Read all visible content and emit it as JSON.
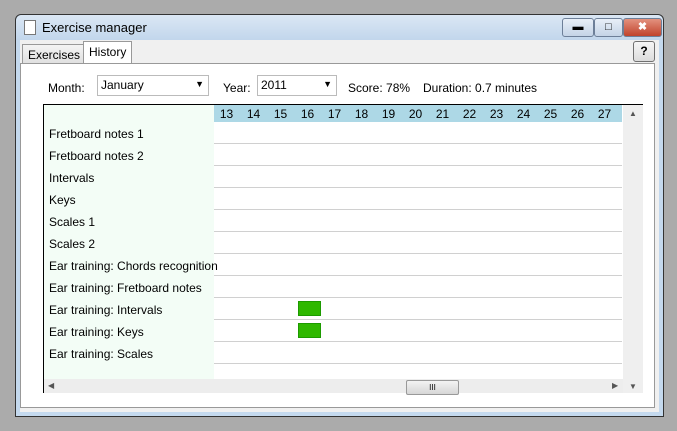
{
  "window": {
    "title": "Exercise manager"
  },
  "tabs": [
    {
      "label": "Exercises",
      "active": false
    },
    {
      "label": "History",
      "active": true
    }
  ],
  "help_label": "?",
  "filters": {
    "month_label": "Month:",
    "month_value": "January",
    "year_label": "Year:",
    "year_value": "2011",
    "score": "Score: 78%",
    "duration": "Duration: 0.7 minutes"
  },
  "days": [
    "13",
    "14",
    "15",
    "16",
    "17",
    "18",
    "19",
    "20",
    "21",
    "22",
    "23",
    "24",
    "25",
    "26",
    "27"
  ],
  "exercises": [
    "Fretboard notes 1",
    "Fretboard notes 2",
    "Intervals",
    "Keys",
    "Scales 1",
    "Scales 2",
    "Ear training: Chords recognition",
    "Ear training: Fretboard notes",
    "Ear training: Intervals",
    "Ear training: Keys",
    "Ear training: Scales"
  ],
  "sessions": [
    {
      "exercise": "Ear training: Intervals",
      "day": "16"
    },
    {
      "exercise": "Ear training: Keys",
      "day": "16"
    }
  ],
  "colors": {
    "header": "#add8e6",
    "session": "#2fb800",
    "label_column": "#f3fdf6"
  },
  "scrollbar": {
    "thumb_grip": "III"
  }
}
